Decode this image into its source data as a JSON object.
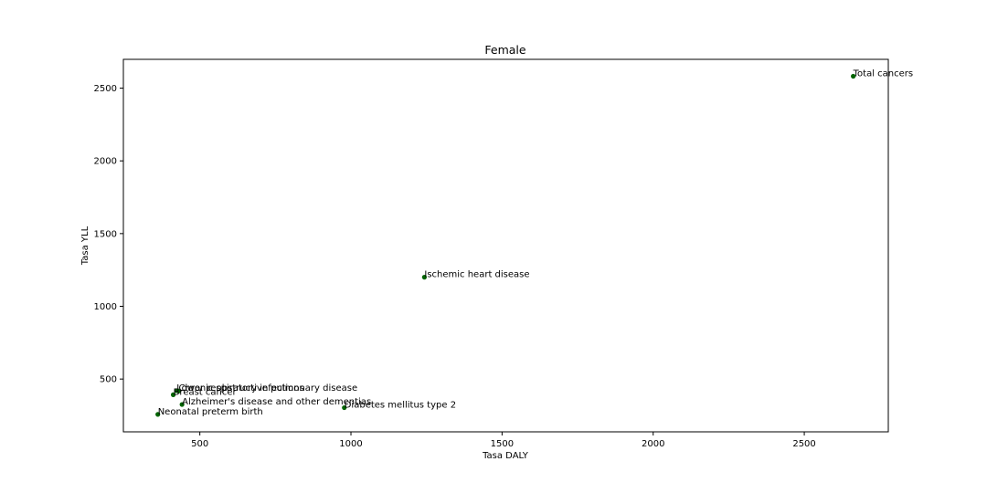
{
  "chart_data": {
    "type": "scatter",
    "title": "Female",
    "xlabel": "Tasa DALY",
    "ylabel": "Tasa YLL",
    "xlim": [
      247,
      2778
    ],
    "ylim": [
      137,
      2698
    ],
    "xticks": [
      "500",
      "1000",
      "1500",
      "2000",
      "2500"
    ],
    "yticks": [
      "500",
      "1000",
      "1500",
      "2000",
      "2500"
    ],
    "xtick_values": [
      500,
      1000,
      1500,
      2000,
      2500
    ],
    "ytick_values": [
      500,
      1000,
      1500,
      2000,
      2500
    ],
    "grid": false,
    "point_color": "#006400",
    "points": [
      {
        "label": "Total cancers",
        "x": 2662,
        "y": 2582
      },
      {
        "label": "Ischemic heart disease",
        "x": 1243,
        "y": 1200
      },
      {
        "label": "Lower respiratory infections",
        "x": 423,
        "y": 420
      },
      {
        "label": "Chronic obstructive pulmonary disease",
        "x": 430,
        "y": 418
      },
      {
        "label": "Breast cancer",
        "x": 412,
        "y": 392
      },
      {
        "label": "Alzheimer's disease and other dementias",
        "x": 441,
        "y": 325
      },
      {
        "label": "Diabetes mellitus type 2",
        "x": 978,
        "y": 303
      },
      {
        "label": "Neonatal preterm birth",
        "x": 361,
        "y": 257
      }
    ]
  }
}
